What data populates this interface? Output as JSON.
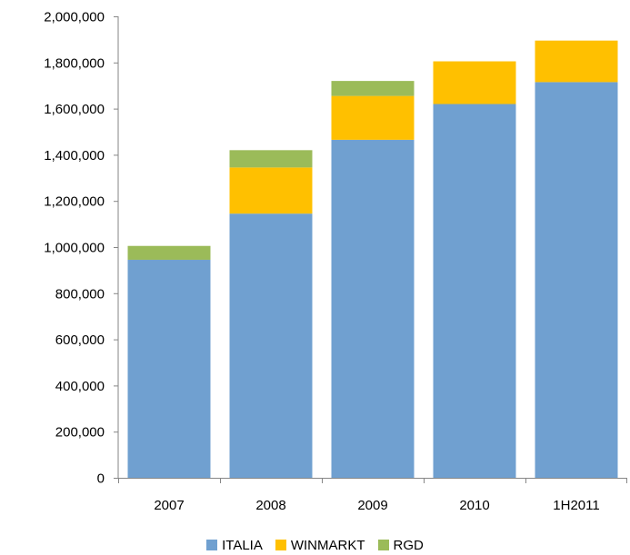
{
  "chart_data": {
    "type": "bar",
    "stacked": true,
    "title": "",
    "xlabel": "",
    "ylabel": "",
    "categories": [
      "2007",
      "2008",
      "2009",
      "2010",
      "1H2011"
    ],
    "ylim": [
      0,
      2000000
    ],
    "yticks": [
      0,
      200000,
      400000,
      600000,
      800000,
      1000000,
      1200000,
      1400000,
      1600000,
      1800000,
      2000000
    ],
    "ytick_labels": [
      "0",
      "200,000",
      "400,000",
      "600,000",
      "800,000",
      "1,000,000",
      "1,200,000",
      "1,400,000",
      "1,600,000",
      "1,800,000",
      "2,000,000"
    ],
    "grid": false,
    "legend_position": "bottom",
    "series": [
      {
        "name": "ITALIA",
        "color": "#70a0d0",
        "values": [
          945000,
          1145000,
          1465000,
          1620000,
          1715000
        ]
      },
      {
        "name": "WINMARKT",
        "color": "#ffc000",
        "values": [
          0,
          200000,
          190000,
          185000,
          180000
        ]
      },
      {
        "name": "RGD",
        "color": "#9bbb59",
        "values": [
          60000,
          75000,
          65000,
          0,
          0
        ]
      }
    ]
  }
}
